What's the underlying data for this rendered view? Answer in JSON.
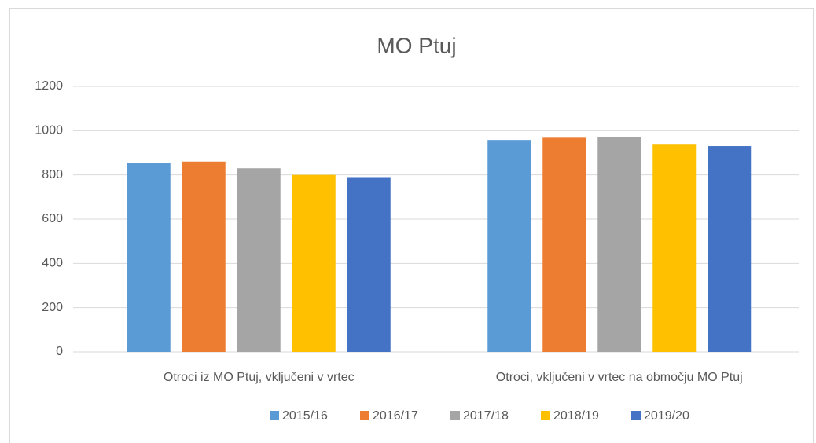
{
  "chart_data": {
    "type": "bar",
    "title": "MO Ptuj",
    "categories": [
      "Otroci iz MO Ptuj, vključeni v vrtec",
      "Otroci, vključeni v vrtec na območju MO Ptuj"
    ],
    "series": [
      {
        "name": "2015/16",
        "color": "#5b9bd5",
        "values": [
          855,
          958
        ]
      },
      {
        "name": "2016/17",
        "color": "#ed7d31",
        "values": [
          860,
          968
        ]
      },
      {
        "name": "2017/18",
        "color": "#a5a5a5",
        "values": [
          830,
          972
        ]
      },
      {
        "name": "2018/19",
        "color": "#ffc000",
        "values": [
          800,
          940
        ]
      },
      {
        "name": "2019/20",
        "color": "#4472c4",
        "values": [
          790,
          930
        ]
      }
    ],
    "ylim": [
      0,
      1200
    ],
    "yticks": [
      0,
      200,
      400,
      600,
      800,
      1000,
      1200
    ],
    "grid": true,
    "legend": "bottom"
  }
}
